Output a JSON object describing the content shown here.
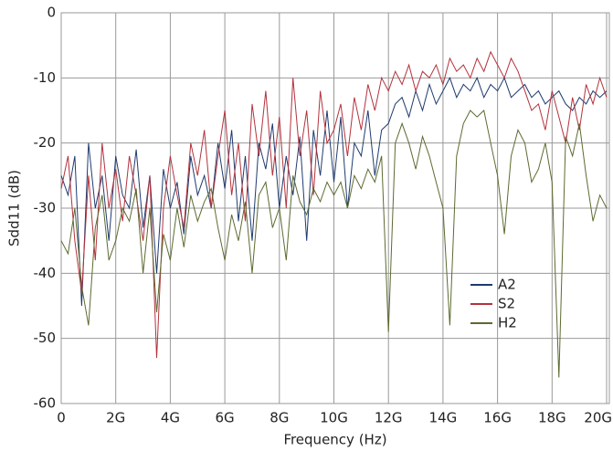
{
  "chart_data": {
    "type": "line",
    "x_label": "Frequency (Hz)",
    "y_label": "Sdd11 (dB)",
    "xlim": [
      0,
      20.1
    ],
    "ylim": [
      -60,
      0
    ],
    "xticks": [
      0,
      {
        "value": 2,
        "label": "2G"
      },
      {
        "value": 4,
        "label": "4G"
      },
      {
        "value": 6,
        "label": "6G"
      },
      {
        "value": 8,
        "label": "8G"
      },
      {
        "value": 10,
        "label": "10G"
      },
      {
        "value": 12,
        "label": "12G"
      },
      {
        "value": 14,
        "label": "14G"
      },
      {
        "value": 16,
        "label": "16G"
      },
      {
        "value": 18,
        "label": "18G"
      },
      {
        "value": 20,
        "label": "20G"
      }
    ],
    "yticks": [
      0,
      -10,
      -20,
      -30,
      -40,
      -50,
      -60
    ],
    "grid": true,
    "legend": "lower-right",
    "x": [
      0,
      0.25,
      0.5,
      0.75,
      1,
      1.25,
      1.5,
      1.75,
      2,
      2.25,
      2.5,
      2.75,
      3,
      3.25,
      3.5,
      3.75,
      4,
      4.25,
      4.5,
      4.75,
      5,
      5.25,
      5.5,
      5.75,
      6,
      6.25,
      6.5,
      6.75,
      7,
      7.25,
      7.5,
      7.75,
      8,
      8.25,
      8.5,
      8.75,
      9,
      9.25,
      9.5,
      9.75,
      10,
      10.25,
      10.5,
      10.75,
      11,
      11.25,
      11.5,
      11.75,
      12,
      12.25,
      12.5,
      12.75,
      13,
      13.25,
      13.5,
      13.75,
      14,
      14.25,
      14.5,
      14.75,
      15,
      15.25,
      15.5,
      15.75,
      16,
      16.25,
      16.5,
      16.75,
      17,
      17.25,
      17.5,
      17.75,
      18,
      18.25,
      18.5,
      18.75,
      19,
      19.25,
      19.5,
      19.75,
      20
    ],
    "series": [
      {
        "name": "A2",
        "color": "#1f3b6f",
        "values": [
          -25,
          -28,
          -22,
          -45,
          -20,
          -30,
          -25,
          -35,
          -22,
          -28,
          -30,
          -21,
          -33,
          -25,
          -40,
          -24,
          -30,
          -26,
          -34,
          -22,
          -28,
          -25,
          -30,
          -20,
          -27,
          -18,
          -32,
          -22,
          -35,
          -20,
          -24,
          -17,
          -30,
          -22,
          -28,
          -19,
          -35,
          -18,
          -25,
          -15,
          -26,
          -16,
          -30,
          -20,
          -22,
          -15,
          -25,
          -18,
          -17,
          -14,
          -13,
          -16,
          -12,
          -15,
          -11,
          -14,
          -12,
          -10,
          -13,
          -11,
          -12,
          -10,
          -13,
          -11,
          -12,
          -10,
          -13,
          -12,
          -11,
          -13,
          -12,
          -14,
          -13,
          -12,
          -14,
          -15,
          -13,
          -14,
          -12,
          -13,
          -12
        ]
      },
      {
        "name": "S2",
        "color": "#b3323c",
        "values": [
          -27,
          -22,
          -35,
          -43,
          -25,
          -38,
          -20,
          -30,
          -24,
          -32,
          -22,
          -28,
          -35,
          -25,
          -53,
          -30,
          -22,
          -28,
          -33,
          -20,
          -25,
          -18,
          -30,
          -22,
          -15,
          -28,
          -20,
          -32,
          -14,
          -22,
          -12,
          -25,
          -16,
          -30,
          -10,
          -22,
          -15,
          -28,
          -12,
          -20,
          -18,
          -14,
          -22,
          -13,
          -18,
          -11,
          -15,
          -10,
          -12,
          -9,
          -11,
          -8,
          -12,
          -9,
          -10,
          -8,
          -11,
          -7,
          -9,
          -8,
          -10,
          -7,
          -9,
          -6,
          -8,
          -10,
          -7,
          -9,
          -12,
          -15,
          -14,
          -18,
          -12,
          -16,
          -20,
          -13,
          -18,
          -11,
          -14,
          -10,
          -13
        ]
      },
      {
        "name": "H2",
        "color": "#5b6b2f",
        "values": [
          -35,
          -37,
          -30,
          -42,
          -48,
          -33,
          -28,
          -38,
          -35,
          -30,
          -32,
          -27,
          -40,
          -30,
          -46,
          -34,
          -38,
          -30,
          -36,
          -28,
          -32,
          -29,
          -27,
          -33,
          -38,
          -31,
          -35,
          -29,
          -40,
          -28,
          -26,
          -33,
          -30,
          -38,
          -25,
          -29,
          -31,
          -27,
          -29,
          -26,
          -28,
          -26,
          -30,
          -25,
          -27,
          -24,
          -26,
          -22,
          -49,
          -20,
          -17,
          -20,
          -24,
          -19,
          -22,
          -26,
          -30,
          -48,
          -22,
          -17,
          -15,
          -16,
          -15,
          -20,
          -25,
          -34,
          -22,
          -18,
          -20,
          -26,
          -24,
          -20,
          -26,
          -56,
          -19,
          -22,
          -17,
          -25,
          -32,
          -28,
          -30
        ]
      }
    ]
  }
}
